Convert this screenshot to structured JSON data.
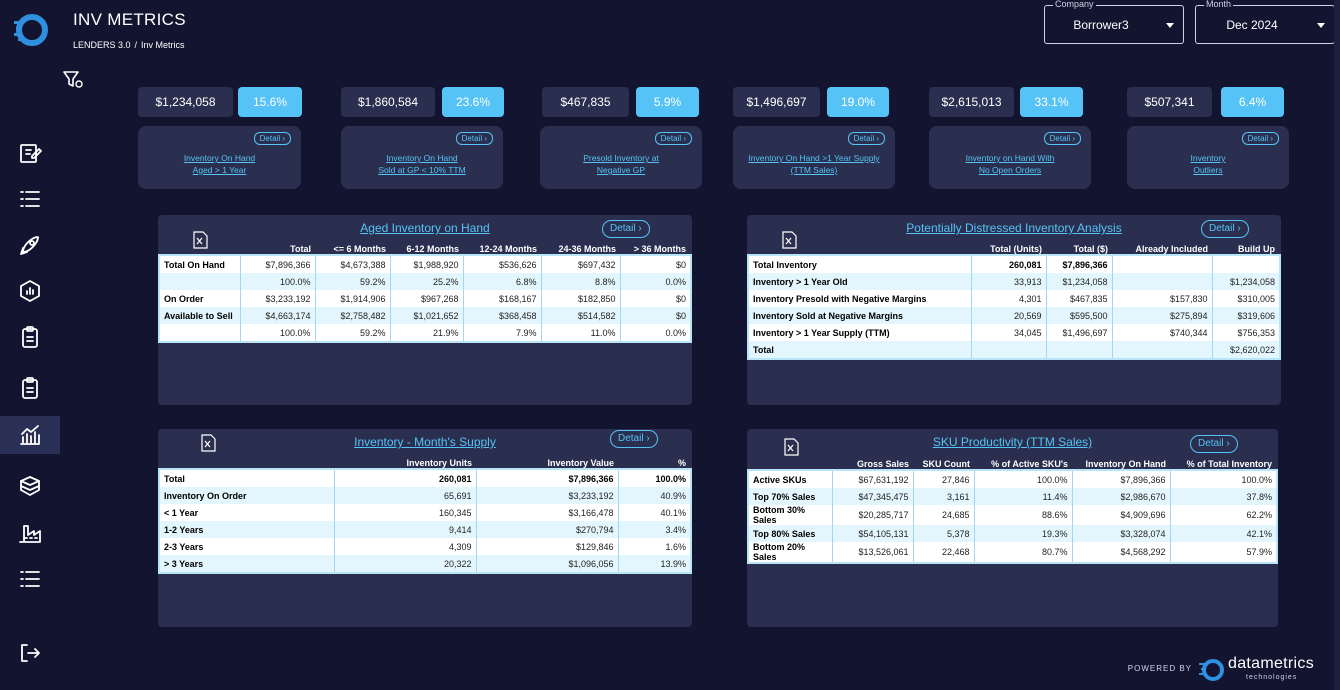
{
  "header": {
    "title": "INV METRICS",
    "breadcrumb": [
      "LENDERS 3.0",
      "/",
      "Inv Metrics"
    ]
  },
  "filters": {
    "company": {
      "label": "Company",
      "value": "Borrower3"
    },
    "month": {
      "label": "Month",
      "value": "Dec 2024"
    }
  },
  "kpis": [
    {
      "value": "$1,234,058",
      "pct": "15.6%",
      "detail": "Detail ›",
      "line1": "Inventory On Hand",
      "line2": "Aged > 1 Year"
    },
    {
      "value": "$1,860,584",
      "pct": "23.6%",
      "detail": "Detail ›",
      "line1": "Inventory On Hand",
      "line2": "Sold at GP < 10% TTM"
    },
    {
      "value": "$467,835",
      "pct": "5.9%",
      "detail": "Detail ›",
      "line1": "Presold Inventory at",
      "line2": "Negative GP"
    },
    {
      "value": "$1,496,697",
      "pct": "19.0%",
      "detail": "Detail ›",
      "line1": "Inventory On Hand >1 Year Supply",
      "line2": "(TTM Sales)"
    },
    {
      "value": "$2,615,013",
      "pct": "33.1%",
      "detail": "Detail ›",
      "line1": "Inventory on Hand With",
      "line2": "No Open Orders"
    },
    {
      "value": "$507,341",
      "pct": "6.4%",
      "detail": "Detail ›",
      "line1": "Inventory",
      "line2": "Outliers"
    }
  ],
  "aged": {
    "title": "Aged Inventory on Hand",
    "detail": "Detail ›",
    "headers": [
      "",
      "Total",
      "<= 6 Months",
      "6-12 Months",
      "12-24 Months",
      "24-36 Months",
      "> 36 Months"
    ],
    "rows": [
      [
        "Total On Hand",
        "$7,896,366",
        "$4,673,388",
        "$1,988,920",
        "$536,626",
        "$697,432",
        "$0"
      ],
      [
        "",
        "100.0%",
        "59.2%",
        "25.2%",
        "6.8%",
        "8.8%",
        "0.0%"
      ],
      [
        "On Order",
        "$3,233,192",
        "$1,914,906",
        "$967,268",
        "$168,167",
        "$182,850",
        "$0"
      ],
      [
        "Available to Sell",
        "$4,663,174",
        "$2,758,482",
        "$1,021,652",
        "$368,458",
        "$514,582",
        "$0"
      ],
      [
        "",
        "100.0%",
        "59.2%",
        "21.9%",
        "7.9%",
        "11.0%",
        "0.0%"
      ]
    ]
  },
  "distressed": {
    "title": "Potentially Distressed Inventory Analysis",
    "detail": "Detail ›",
    "headers": [
      "",
      "Total (Units)",
      "Total ($)",
      "Already Included",
      "Build Up"
    ],
    "rows": [
      [
        "Total Inventory",
        "260,081",
        "$7,896,366",
        "",
        ""
      ],
      [
        "Inventory > 1 Year Old",
        "33,913",
        "$1,234,058",
        "",
        "$1,234,058"
      ],
      [
        "Inventory Presold with Negative Margins",
        "4,301",
        "$467,835",
        "$157,830",
        "$310,005"
      ],
      [
        "Inventory Sold at Negative Margins",
        "20,569",
        "$595,500",
        "$275,894",
        "$319,606"
      ],
      [
        "Inventory > 1 Year Supply (TTM)",
        "34,045",
        "$1,496,697",
        "$740,344",
        "$756,353"
      ],
      [
        "Total",
        "",
        "",
        "",
        "$2,620,022"
      ]
    ]
  },
  "supply": {
    "title": "Inventory - Month's Supply",
    "detail": "Detail ›",
    "headers": [
      "",
      "Inventory Units",
      "Inventory Value",
      "%"
    ],
    "rows": [
      [
        "Total",
        "260,081",
        "$7,896,366",
        "100.0%"
      ],
      [
        "Inventory On Order",
        "65,691",
        "$3,233,192",
        "40.9%"
      ],
      [
        "< 1 Year",
        "160,345",
        "$3,166,478",
        "40.1%"
      ],
      [
        "1-2 Years",
        "9,414",
        "$270,794",
        "3.4%"
      ],
      [
        "2-3 Years",
        "4,309",
        "$129,846",
        "1.6%"
      ],
      [
        "> 3 Years",
        "20,322",
        "$1,096,056",
        "13.9%"
      ]
    ]
  },
  "sku": {
    "title": "SKU Productivity (TTM Sales)",
    "detail": "Detail ›",
    "headers": [
      "",
      "Gross Sales",
      "SKU Count",
      "% of Active SKU's",
      "Inventory On Hand",
      "% of Total Inventory"
    ],
    "rows": [
      [
        "Active SKUs",
        "$67,631,192",
        "27,846",
        "100.0%",
        "$7,896,366",
        "100.0%"
      ],
      [
        "Top 70% Sales",
        "$47,345,475",
        "3,161",
        "11.4%",
        "$2,986,670",
        "37.8%"
      ],
      [
        "Bottom 30% Sales",
        "$20,285,717",
        "24,685",
        "88.6%",
        "$4,909,696",
        "62.2%"
      ],
      [
        "Top 80% Sales",
        "$54,105,131",
        "5,378",
        "19.3%",
        "$3,328,074",
        "42.1%"
      ],
      [
        "Bottom 20% Sales",
        "$13,526,061",
        "22,468",
        "80.7%",
        "$4,568,292",
        "57.9%"
      ]
    ]
  },
  "footer": {
    "powered_by": "POWERED BY",
    "brand": "datametrics",
    "brand_sub": "technologies"
  },
  "colors": {
    "bg": "#131530",
    "panel": "#2b2f4f",
    "accent": "#55c3f5"
  }
}
